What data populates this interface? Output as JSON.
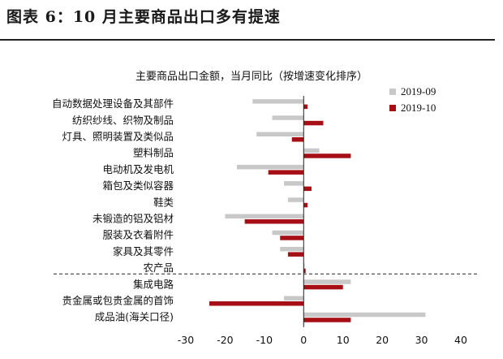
{
  "page": {
    "figure_title": "图表 6：10 月主要商品出口多有提速"
  },
  "chart_data": {
    "type": "bar",
    "orientation": "horizontal",
    "title": "主要商品出口金额，当月同比（按增速变化排序）",
    "categories": [
      "自动数据处理设备及其部件",
      "纺织纱线、织物及制品",
      "灯具、照明装置及类似品",
      "塑料制品",
      "电动机及发电机",
      "箱包及类似容器",
      "鞋类",
      "未锻造的铝及铝材",
      "服装及衣着附件",
      "家具及其零件",
      "农产品",
      "集成电路",
      "贵金属或包贵金属的首饰",
      "成品油(海关口径)"
    ],
    "series": [
      {
        "name": "2019-09",
        "color": "#c8c8c8",
        "values": [
          -13,
          -8,
          -12,
          4,
          -17,
          -5,
          -4,
          -20,
          -8,
          -6,
          0,
          12,
          -5,
          31
        ]
      },
      {
        "name": "2019-10",
        "color": "#a50f15",
        "values": [
          1,
          5,
          -3,
          12,
          -9,
          2,
          1,
          -15,
          -6,
          -4,
          0.5,
          10,
          -24,
          12
        ]
      }
    ],
    "xlim": [
      -30,
      40
    ],
    "xticks": [
      "-30",
      "-20",
      "-10",
      "0",
      "10",
      "20",
      "30",
      "40"
    ],
    "xtick_values": [
      -30,
      -20,
      -10,
      0,
      10,
      20,
      30,
      40
    ],
    "divider_after_index": 10,
    "legend_position": "top-right",
    "grid": false
  }
}
